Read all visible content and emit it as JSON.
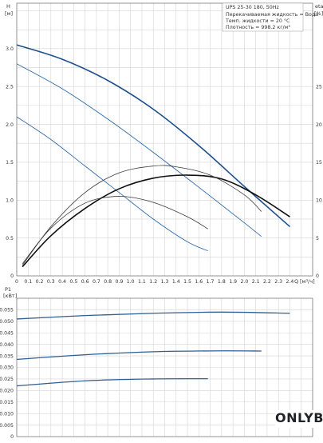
{
  "chart_data": [
    {
      "type": "line",
      "panel": "head-efficiency",
      "info_lines": [
        "UPS 25-30 180, 50Hz",
        "Перекачиваемая жидкость = Вода",
        "Темп. жидкости = 20 °C",
        "Плотность = 998.2 кг/м³"
      ],
      "ylabel": "H",
      "yunit": "[м]",
      "y2label": "eta",
      "y2unit": "[%]",
      "xlabel": "Q",
      "xunit": "[м³/ч]",
      "xlim": [
        0,
        2.6
      ],
      "ylim": [
        0,
        3.6
      ],
      "y2lim": [
        0,
        36
      ],
      "xticks": [
        "0",
        "0.1",
        "0.2",
        "0.3",
        "0.4",
        "0.5",
        "0.6",
        "0.7",
        "0.8",
        "0.9",
        "1.0",
        "1.1",
        "1.2",
        "1.3",
        "1.4",
        "1.5",
        "1.6",
        "1.7",
        "1.8",
        "1.9",
        "2.0",
        "2.1",
        "2.2",
        "2.3",
        "2.4"
      ],
      "yticks": [
        "0",
        "0.5",
        "1.0",
        "1.5",
        "2.0",
        "2.5",
        "3.0"
      ],
      "y2ticks": [
        "0",
        "5",
        "10",
        "15",
        "20",
        "25"
      ],
      "head_series": [
        {
          "x": [
            0,
            0.4,
            0.8,
            1.2,
            1.6,
            2.0,
            2.4
          ],
          "y": [
            3.05,
            2.86,
            2.58,
            2.2,
            1.72,
            1.18,
            0.65
          ]
        },
        {
          "x": [
            0,
            0.4,
            0.8,
            1.2,
            1.6,
            2.0,
            2.15
          ],
          "y": [
            2.8,
            2.47,
            2.07,
            1.63,
            1.17,
            0.7,
            0.52
          ]
        },
        {
          "x": [
            0,
            0.3,
            0.6,
            0.9,
            1.2,
            1.5,
            1.68
          ],
          "y": [
            2.1,
            1.8,
            1.45,
            1.1,
            0.75,
            0.45,
            0.33
          ]
        }
      ],
      "eta_series": [
        {
          "x": [
            0.05,
            0.3,
            0.6,
            0.9,
            1.2,
            1.5,
            1.8,
            2.1,
            2.4
          ],
          "y": [
            1.2,
            5.3,
            8.9,
            11.5,
            12.9,
            13.3,
            12.8,
            10.7,
            7.8
          ]
        },
        {
          "x": [
            0.05,
            0.3,
            0.6,
            0.9,
            1.2,
            1.4,
            1.7,
            2.0,
            2.15
          ],
          "y": [
            1.4,
            6.5,
            11.0,
            13.6,
            14.5,
            14.4,
            13.3,
            10.7,
            8.5
          ]
        },
        {
          "x": [
            0.05,
            0.3,
            0.6,
            0.9,
            1.2,
            1.5,
            1.68
          ],
          "y": [
            1.6,
            6.3,
            9.6,
            10.5,
            9.7,
            7.8,
            6.2
          ]
        }
      ]
    },
    {
      "type": "line",
      "panel": "power",
      "ylabel": "P1",
      "yunit": "[кВт]",
      "xlim": [
        0,
        2.6
      ],
      "ylim": [
        0,
        0.06
      ],
      "yticks": [
        "0",
        "0.005",
        "0.010",
        "0.015",
        "0.020",
        "0.025",
        "0.030",
        "0.035",
        "0.040",
        "0.045",
        "0.050",
        "0.055"
      ],
      "series": [
        {
          "x": [
            0,
            0.6,
            1.2,
            1.8,
            2.4
          ],
          "y": [
            0.051,
            0.0525,
            0.0535,
            0.054,
            0.0535
          ]
        },
        {
          "x": [
            0,
            0.6,
            1.2,
            1.8,
            2.15
          ],
          "y": [
            0.0335,
            0.0355,
            0.0368,
            0.0372,
            0.0371
          ]
        },
        {
          "x": [
            0,
            0.6,
            1.2,
            1.68
          ],
          "y": [
            0.022,
            0.0242,
            0.025,
            0.0251
          ]
        }
      ]
    }
  ],
  "colors": {
    "head_curve": "#2e6aa8",
    "head_curve_max": "#1c4f8c",
    "eta_curve": "#3a3a3a",
    "eta_curve_max": "#111111",
    "power_curve": "#2f5f93",
    "grid": "#d4d4d4"
  },
  "logo_text": "ONLYBT"
}
